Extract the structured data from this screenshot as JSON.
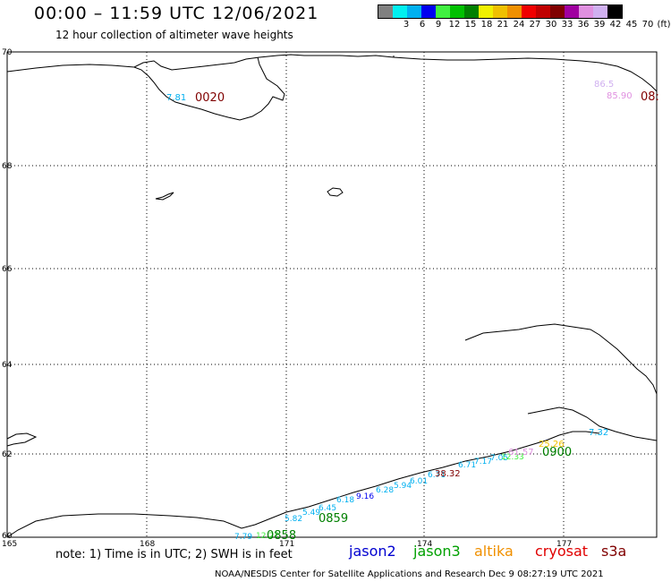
{
  "header": {
    "title": "00:00 – 11:59 UTC 12/06/2021",
    "subtitle": "12 hour collection of altimeter wave heights"
  },
  "legend": {
    "unit": "(ft)",
    "swatches": [
      {
        "label": "",
        "color": "#808080"
      },
      {
        "label": "3",
        "color": "#00f0f0"
      },
      {
        "label": "6",
        "color": "#00b0f0"
      },
      {
        "label": "9",
        "color": "#0000f0"
      },
      {
        "label": "12",
        "color": "#40f040"
      },
      {
        "label": "15",
        "color": "#00c000"
      },
      {
        "label": "18",
        "color": "#008000"
      },
      {
        "label": "21",
        "color": "#f0f000"
      },
      {
        "label": "24",
        "color": "#f0c000"
      },
      {
        "label": "27",
        "color": "#f09000"
      },
      {
        "label": "30",
        "color": "#f00000"
      },
      {
        "label": "33",
        "color": "#c00000"
      },
      {
        "label": "36",
        "color": "#800000"
      },
      {
        "label": "39",
        "color": "#a000a0"
      },
      {
        "label": "42",
        "color": "#e090e0"
      },
      {
        "label": "45",
        "color": "#d0b0f0"
      },
      {
        "label": "70",
        "color": "#000000"
      }
    ]
  },
  "map": {
    "lat_labels": [
      "70",
      "68",
      "66",
      "64",
      "62",
      "60"
    ],
    "lon_labels": [
      "165",
      "168",
      "171",
      "174",
      "177"
    ],
    "observations": [
      {
        "text": "7.81",
        "color": "#00b0f0"
      },
      {
        "text": "0020",
        "color": "#800000"
      },
      {
        "text": "85.90",
        "color": "#e090e0"
      },
      {
        "text": "86.5",
        "color": "#d0b0f0"
      },
      {
        "text": "08:",
        "color": "#800000"
      },
      {
        "text": "7.32",
        "color": "#00b0f0"
      },
      {
        "text": "25.26",
        "color": "#f0c000"
      },
      {
        "text": "0900",
        "color": "#008000"
      },
      {
        "text": "61.57",
        "color": "#e090e0"
      },
      {
        "text": "38.32",
        "color": "#800000"
      },
      {
        "text": "0859",
        "color": "#008000"
      },
      {
        "text": "0858",
        "color": "#008000"
      }
    ]
  },
  "notes": {
    "note": "note: 1) Time is in UTC; 2) SWH is in feet",
    "satellites": [
      {
        "name": "jason2",
        "color": "#0000d0"
      },
      {
        "name": "jason3",
        "color": "#00a000"
      },
      {
        "name": "altika",
        "color": "#f09000"
      },
      {
        "name": "cryosat",
        "color": "#e00000"
      },
      {
        "name": "s3a",
        "color": "#800000"
      }
    ],
    "credit": "NOAA/NESDIS Center for Satellite Applications and Research    Dec  9 08:27:19 UTC 2021"
  }
}
